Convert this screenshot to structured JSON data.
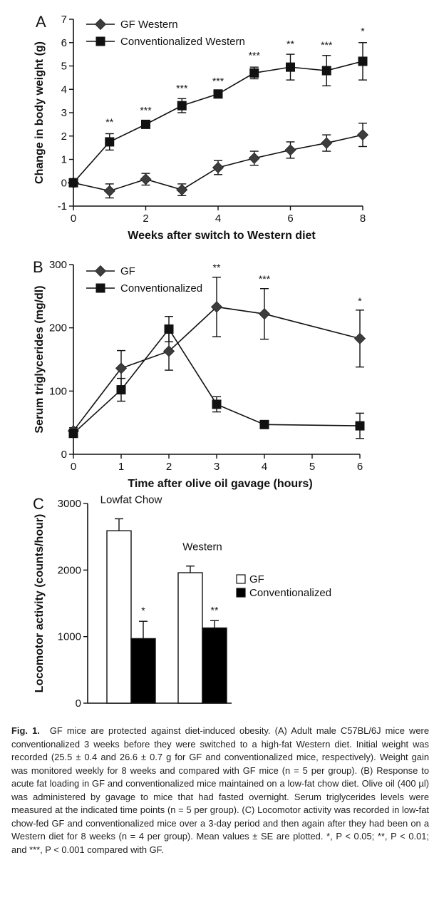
{
  "figure": {
    "panels": [
      {
        "letter": "A",
        "ylabel": "Change in body weight (g)",
        "xlabel": "Weeks after switch to Western diet"
      },
      {
        "letter": "B",
        "ylabel": "Serum triglycerides (mg/dl)",
        "xlabel": "Time after olive oil gavage (hours)"
      },
      {
        "letter": "C",
        "ylabel": "Locomotor activity (counts/hour)",
        "xlabel": ""
      }
    ]
  },
  "chart_data": [
    {
      "panel": "A",
      "type": "line",
      "xlabel": "Weeks after switch to Western diet",
      "ylabel": "Change in body weight (g)",
      "xlim": [
        0,
        8
      ],
      "ylim": [
        -1,
        7
      ],
      "xticks": [
        0,
        2,
        4,
        6,
        8
      ],
      "yticks": [
        -1,
        0,
        1,
        2,
        3,
        4,
        5,
        6,
        7
      ],
      "legend": "top-left",
      "series": [
        {
          "name": "GF Western",
          "marker": "diamond",
          "x": [
            0,
            1,
            2,
            3,
            4,
            5,
            6,
            7,
            8
          ],
          "y": [
            0,
            -0.35,
            0.15,
            -0.3,
            0.65,
            1.05,
            1.4,
            1.7,
            2.05
          ],
          "err": [
            0,
            0.3,
            0.25,
            0.25,
            0.3,
            0.3,
            0.35,
            0.35,
            0.5
          ]
        },
        {
          "name": "Conventionalized Western",
          "marker": "square",
          "x": [
            0,
            1,
            2,
            3,
            4,
            5,
            6,
            7,
            8
          ],
          "y": [
            0,
            1.75,
            2.5,
            3.3,
            3.8,
            4.7,
            4.95,
            4.8,
            5.2
          ],
          "err": [
            0,
            0.35,
            0.15,
            0.3,
            0.1,
            0.25,
            0.55,
            0.65,
            0.8
          ]
        }
      ],
      "annotations": [
        {
          "x": 1,
          "y": 2.45,
          "text": "**"
        },
        {
          "x": 2,
          "y": 2.95,
          "text": "***"
        },
        {
          "x": 3,
          "y": 3.9,
          "text": "***"
        },
        {
          "x": 4,
          "y": 4.2,
          "text": "***"
        },
        {
          "x": 5,
          "y": 5.3,
          "text": "***"
        },
        {
          "x": 6,
          "y": 5.8,
          "text": "**"
        },
        {
          "x": 7,
          "y": 5.75,
          "text": "***"
        },
        {
          "x": 8,
          "y": 6.35,
          "text": "*"
        }
      ]
    },
    {
      "panel": "B",
      "type": "line",
      "xlabel": "Time after olive oil gavage (hours)",
      "ylabel": "Serum triglycerides (mg/dl)",
      "xlim": [
        0,
        6
      ],
      "ylim": [
        0,
        300
      ],
      "xticks": [
        0,
        1,
        2,
        3,
        4,
        5,
        6
      ],
      "yticks": [
        0,
        100,
        200,
        300
      ],
      "legend": "top-left",
      "series": [
        {
          "name": "GF",
          "marker": "diamond",
          "x": [
            0,
            1,
            2,
            3,
            4,
            6
          ],
          "y": [
            37,
            136,
            163,
            233,
            222,
            183
          ],
          "err": [
            5,
            28,
            30,
            47,
            40,
            45
          ]
        },
        {
          "name": "Conventionalized",
          "marker": "square",
          "x": [
            0,
            1,
            2,
            3,
            4,
            6
          ],
          "y": [
            33,
            102,
            198,
            79,
            47,
            45
          ],
          "err": [
            5,
            18,
            20,
            12,
            3,
            20
          ]
        }
      ],
      "annotations": [
        {
          "x": 3,
          "y": 290,
          "text": "**"
        },
        {
          "x": 4,
          "y": 272,
          "text": "***"
        },
        {
          "x": 6,
          "y": 237,
          "text": "*"
        }
      ]
    },
    {
      "panel": "C",
      "type": "bar",
      "ylabel": "Locomotor activity (counts/hour)",
      "ylim": [
        0,
        3000
      ],
      "yticks": [
        0,
        1000,
        2000,
        3000
      ],
      "legend": "right",
      "categories": [
        "Lowfat Chow",
        "Western"
      ],
      "series": [
        {
          "name": "GF",
          "color": "#ffffff",
          "values": [
            2590,
            1960
          ],
          "err": [
            180,
            100
          ]
        },
        {
          "name": "Conventionalized",
          "color": "#000000",
          "values": [
            970,
            1130
          ],
          "err": [
            260,
            110
          ]
        }
      ],
      "annotations": [
        {
          "category": 0,
          "series": 1,
          "text": "*"
        },
        {
          "category": 1,
          "series": 1,
          "text": "**"
        }
      ]
    }
  ],
  "caption": {
    "lead": "Fig. 1.",
    "body": "GF mice are protected against diet-induced obesity. (A) Adult male C57BL/6J mice were conventionalized 3 weeks before they were switched to a high-fat Western diet. Initial weight was recorded (25.5 ± 0.4 and 26.6 ± 0.7 g for GF and conventionalized mice, respectively). Weight gain was monitored weekly for 8 weeks and compared with GF mice (n = 5 per group). (B) Response to acute fat loading in GF and conventionalized mice maintained on a low-fat chow diet. Olive oil (400 µl) was administered by gavage to mice that had fasted overnight. Serum triglycerides levels were measured at the indicated time points (n = 5 per group). (C) Locomotor activity was recorded in low-fat chow-fed GF and conventionalized mice over a 3-day period and then again after they had been on a Western diet for 8 weeks (n = 4 per group). Mean values ± SE are plotted. *, P < 0.05; **, P < 0.01; and ***, P < 0.001 compared with GF."
  }
}
